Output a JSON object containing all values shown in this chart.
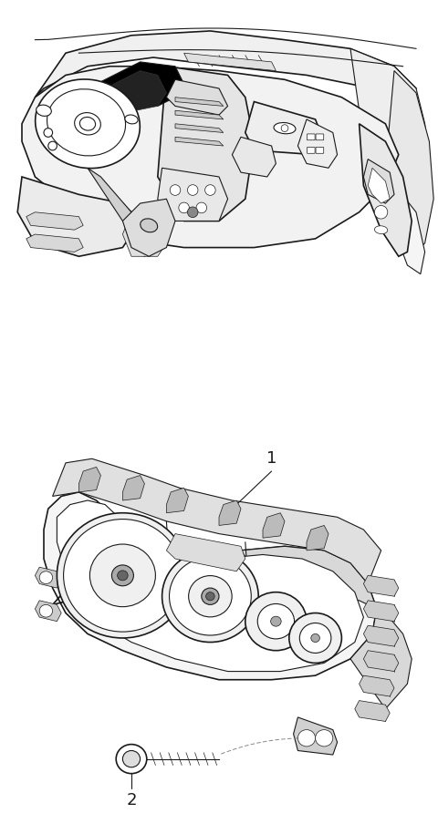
{
  "background_color": "#ffffff",
  "line_color": "#1a1a1a",
  "fig_width": 4.8,
  "fig_height": 9.15,
  "dpi": 100,
  "label1": "1",
  "label2": "2"
}
